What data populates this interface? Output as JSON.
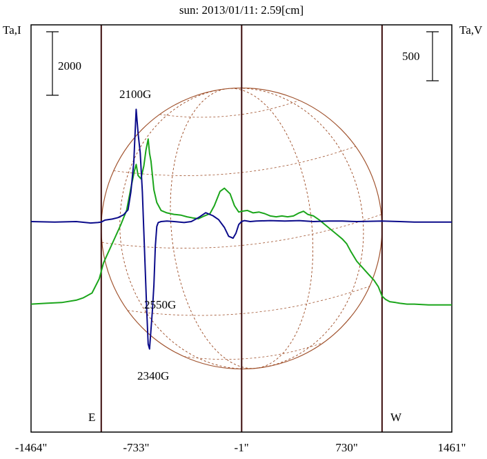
{
  "title": "sun: 2013/01/11: 2.59[cm]",
  "left_axis_label": "Ta,I",
  "right_axis_label": "Ta,V",
  "scale_bars": {
    "left": "2000",
    "right": "500"
  },
  "limb_labels": {
    "east": "E",
    "west": "W"
  },
  "annotations": [
    "2100G",
    "2550G",
    "2340G"
  ],
  "colors": {
    "intensity": "#1aa51a",
    "polarization": "#0a0a8a",
    "disk": "#a0522d",
    "frame": "#000000",
    "limb_lines": "#3a0a0a",
    "title": "#1a1a6e"
  },
  "chart_data": {
    "type": "line",
    "title": "sun: 2013/01/11: 2.59[cm]",
    "xlabel": "",
    "ylabel_left": "Ta,I",
    "ylabel_right": "Ta,V",
    "x_ticks": [
      "-1464\"",
      "-733\"",
      "-1\"",
      "730\"",
      "1461\""
    ],
    "x_tick_values": [
      -1464,
      -733,
      -1,
      730,
      1461
    ],
    "xlim": [
      -1464,
      1461
    ],
    "limb_positions": [
      -976,
      976
    ],
    "grid": false,
    "series": [
      {
        "name": "Ta,I",
        "x": [
          -1464,
          -1360,
          -1250,
          -1150,
          -1100,
          -1040,
          -990,
          -960,
          -920,
          -880,
          -840,
          -800,
          -770,
          -745,
          -733,
          -720,
          -700,
          -680,
          -665,
          -650,
          -640,
          -630,
          -610,
          -590,
          -560,
          -520,
          -470,
          -420,
          -380,
          -340,
          -300,
          -260,
          -220,
          -190,
          -150,
          -120,
          -80,
          -50,
          -20,
          0,
          40,
          80,
          120,
          160,
          200,
          240,
          280,
          320,
          360,
          400,
          430,
          460,
          500,
          540,
          580,
          620,
          660,
          700,
          730,
          760,
          800,
          840,
          880,
          920,
          950,
          976,
          1000,
          1030,
          1070,
          1100,
          1150,
          1200,
          1300,
          1400,
          1461
        ],
        "y": [
          -5200,
          -5150,
          -5100,
          -4950,
          -4800,
          -4500,
          -3600,
          -2600,
          -1800,
          -1000,
          -200,
          700,
          2100,
          3200,
          3600,
          2900,
          2700,
          3500,
          4500,
          5200,
          4300,
          3800,
          2000,
          1200,
          700,
          550,
          450,
          400,
          300,
          230,
          180,
          350,
          500,
          1000,
          1900,
          2100,
          1750,
          1000,
          600,
          650,
          700,
          550,
          600,
          500,
          350,
          300,
          350,
          300,
          350,
          550,
          650,
          450,
          350,
          100,
          -200,
          -500,
          -800,
          -1100,
          -1400,
          -1900,
          -2500,
          -2900,
          -3300,
          -3700,
          -4100,
          -4700,
          -4900,
          -5050,
          -5100,
          -5150,
          -5200,
          -5200,
          -5250,
          -5250,
          -5250
        ],
        "color": "#1aa51a"
      },
      {
        "name": "Ta,V",
        "x": [
          -1464,
          -1300,
          -1150,
          -1050,
          -1000,
          -976,
          -950,
          -900,
          -860,
          -820,
          -790,
          -770,
          -750,
          -733,
          -720,
          -705,
          -690,
          -680,
          -670,
          -660,
          -650,
          -640,
          -630,
          -620,
          -610,
          -600,
          -590,
          -580,
          -560,
          -520,
          -470,
          -400,
          -350,
          -300,
          -250,
          -200,
          -160,
          -120,
          -90,
          -60,
          -40,
          -20,
          -1,
          20,
          60,
          100,
          200,
          300,
          400,
          500,
          600,
          700,
          800,
          976,
          1100,
          1200,
          1300,
          1461
        ],
        "y": [
          0,
          -5,
          0,
          -15,
          -10,
          -5,
          15,
          25,
          40,
          70,
          120,
          300,
          600,
          1145,
          900,
          700,
          300,
          -100,
          -500,
          -900,
          -1250,
          -1300,
          -1100,
          -900,
          -650,
          -250,
          -50,
          -10,
          0,
          5,
          0,
          -10,
          0,
          40,
          90,
          60,
          20,
          -60,
          -150,
          -170,
          -120,
          -30,
          0,
          10,
          0,
          5,
          10,
          5,
          10,
          0,
          5,
          5,
          0,
          5,
          0,
          -5,
          -5,
          -5
        ],
        "color": "#0a0a8a"
      }
    ]
  }
}
